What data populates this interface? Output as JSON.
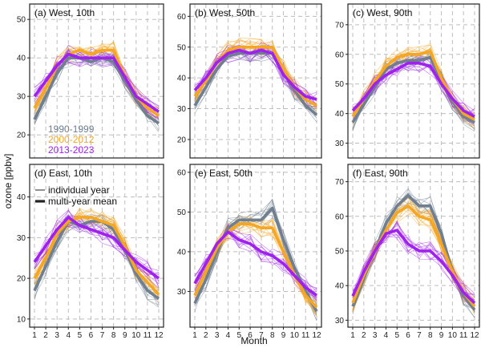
{
  "figure": {
    "ylabel": "ozone [ppbv]",
    "xlabel": "Month",
    "x_ticks": [
      "1",
      "2",
      "3",
      "4",
      "5",
      "6",
      "7",
      "8",
      "9",
      "10",
      "11",
      "12"
    ],
    "colors": {
      "p1990": "#6f7f8f",
      "p2000": "#f5a623",
      "p2013": "#a020f0"
    }
  },
  "legend_periods": [
    "1990-1999",
    "2000-2012",
    "2013-2023"
  ],
  "legend_lines": [
    "individual year",
    "multi-year mean"
  ],
  "chart_data": [
    {
      "type": "line",
      "title": "(a) West, 10th",
      "ylim": [
        14,
        54
      ],
      "yticks": [
        20,
        30,
        40,
        50
      ],
      "x": [
        1,
        2,
        3,
        4,
        5,
        6,
        7,
        8,
        9,
        10,
        11,
        12
      ],
      "grid": true,
      "series": [
        {
          "name": "1990-1999",
          "values": [
            24,
            30,
            36,
            40,
            40,
            39,
            40,
            39,
            34,
            29,
            25,
            23
          ]
        },
        {
          "name": "2000-2012",
          "values": [
            27,
            32,
            38,
            41,
            42,
            41,
            42,
            42,
            35,
            30,
            27,
            25
          ]
        },
        {
          "name": "2013-2023",
          "values": [
            30,
            34,
            38,
            41,
            40,
            40,
            40,
            40,
            35,
            30,
            28,
            26
          ]
        }
      ]
    },
    {
      "type": "line",
      "title": "(b) West, 50th",
      "ylim": [
        14,
        64
      ],
      "yticks": [
        20,
        30,
        40,
        50,
        60
      ],
      "x": [
        1,
        2,
        3,
        4,
        5,
        6,
        7,
        8,
        9,
        10,
        11,
        12
      ],
      "grid": true,
      "series": [
        {
          "name": "1990-1999",
          "values": [
            31,
            37,
            43,
            47,
            48,
            48,
            48,
            48,
            42,
            36,
            31,
            28
          ]
        },
        {
          "name": "2000-2012",
          "values": [
            34,
            39,
            45,
            49,
            50,
            50,
            50,
            50,
            43,
            37,
            33,
            31
          ]
        },
        {
          "name": "2013-2023",
          "values": [
            36,
            40,
            45,
            48,
            49,
            48,
            49,
            48,
            41,
            37,
            34,
            33
          ]
        }
      ]
    },
    {
      "type": "line",
      "title": "(c) West, 90th",
      "ylim": [
        25,
        77
      ],
      "yticks": [
        30,
        40,
        50,
        60,
        70
      ],
      "x": [
        1,
        2,
        3,
        4,
        5,
        6,
        7,
        8,
        9,
        10,
        11,
        12
      ],
      "grid": true,
      "series": [
        {
          "name": "1990-1999",
          "values": [
            37,
            43,
            49,
            55,
            57,
            58,
            58,
            59,
            51,
            44,
            39,
            37
          ]
        },
        {
          "name": "2000-2012",
          "values": [
            39,
            45,
            51,
            56,
            59,
            60,
            60,
            61,
            52,
            45,
            40,
            38
          ]
        },
        {
          "name": "2013-2023",
          "values": [
            41,
            45,
            50,
            53,
            55,
            57,
            57,
            56,
            50,
            45,
            41,
            39
          ]
        }
      ]
    },
    {
      "type": "line",
      "title": "(d) East, 10th",
      "ylim": [
        8,
        48
      ],
      "yticks": [
        10,
        20,
        30,
        40
      ],
      "x": [
        1,
        2,
        3,
        4,
        5,
        6,
        7,
        8,
        9,
        10,
        11,
        12
      ],
      "grid": true,
      "series": [
        {
          "name": "1990-1999",
          "values": [
            17,
            23,
            29,
            34,
            33,
            34,
            34,
            32,
            27,
            21,
            17,
            15
          ]
        },
        {
          "name": "2000-2012",
          "values": [
            20,
            25,
            31,
            34,
            35,
            35,
            34,
            33,
            28,
            22,
            19,
            16
          ]
        },
        {
          "name": "2013-2023",
          "values": [
            24,
            28,
            32,
            35,
            33,
            32,
            31,
            30,
            27,
            24,
            22,
            20
          ]
        }
      ]
    },
    {
      "type": "line",
      "title": "(e) East, 50th",
      "ylim": [
        21,
        62
      ],
      "yticks": [
        30,
        40,
        50,
        60
      ],
      "x": [
        1,
        2,
        3,
        4,
        5,
        6,
        7,
        8,
        9,
        10,
        11,
        12
      ],
      "grid": true,
      "series": [
        {
          "name": "1990-1999",
          "values": [
            27,
            33,
            40,
            46,
            48,
            48,
            48,
            51,
            43,
            36,
            30,
            25
          ]
        },
        {
          "name": "2000-2012",
          "values": [
            29,
            35,
            41,
            45,
            47,
            47,
            46,
            46,
            40,
            34,
            29,
            26
          ]
        },
        {
          "name": "2013-2023",
          "values": [
            32,
            37,
            42,
            45,
            43,
            42,
            40,
            39,
            37,
            34,
            31,
            29
          ]
        }
      ]
    },
    {
      "type": "line",
      "title": "(f) East, 90th",
      "ylim": [
        28,
        75
      ],
      "yticks": [
        30,
        40,
        50,
        60,
        70
      ],
      "x": [
        1,
        2,
        3,
        4,
        5,
        6,
        7,
        8,
        9,
        10,
        11,
        12
      ],
      "grid": true,
      "series": [
        {
          "name": "1990-1999",
          "values": [
            34,
            42,
            50,
            58,
            63,
            66,
            63,
            63,
            55,
            44,
            37,
            33
          ]
        },
        {
          "name": "2000-2012",
          "values": [
            35,
            43,
            50,
            56,
            61,
            63,
            60,
            59,
            52,
            44,
            38,
            34
          ]
        },
        {
          "name": "2013-2023",
          "values": [
            37,
            44,
            50,
            55,
            56,
            52,
            50,
            50,
            47,
            43,
            38,
            35
          ]
        }
      ]
    }
  ]
}
